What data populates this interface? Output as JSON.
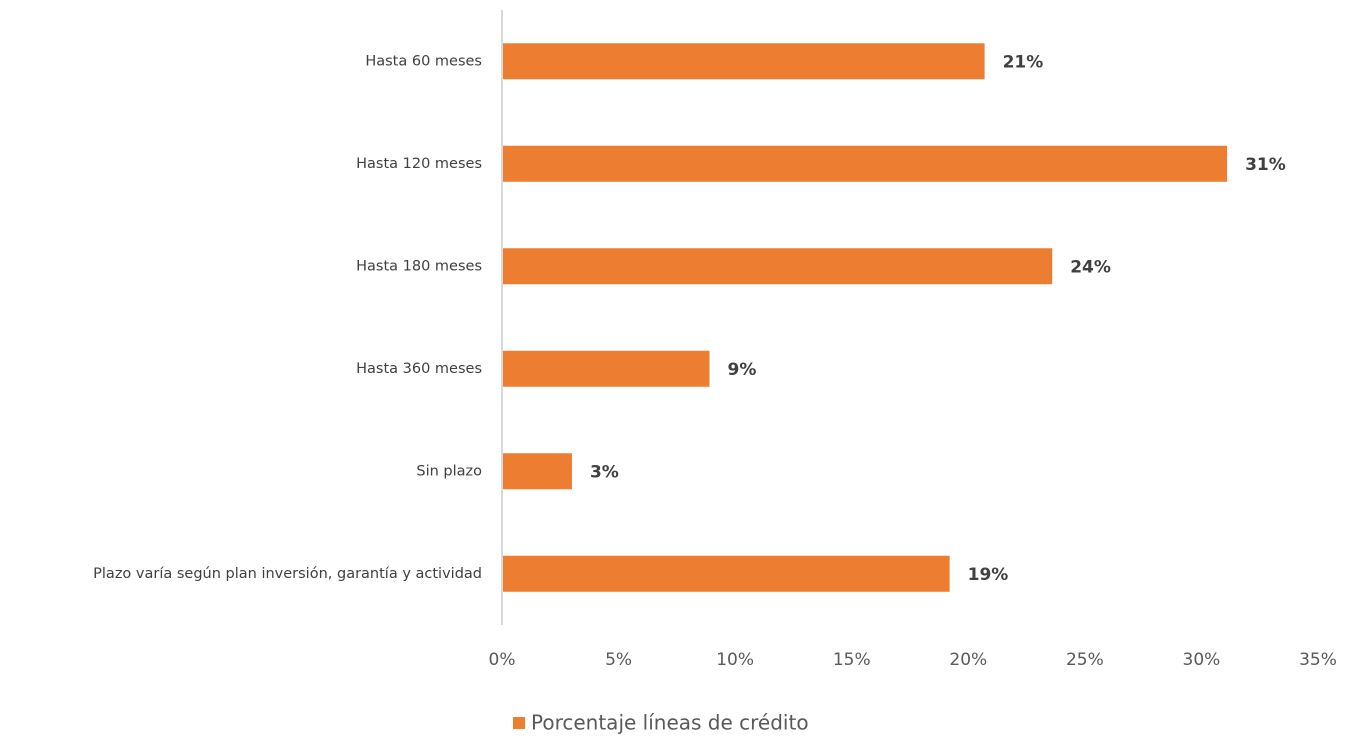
{
  "chart_data": {
    "type": "bar",
    "orientation": "horizontal",
    "categories": [
      "Hasta 60 meses",
      "Hasta 120 meses",
      "Hasta 180 meses",
      "Hasta 360 meses",
      "Sin plazo",
      "Plazo varía según plan inversión, garantía y actividad"
    ],
    "series": [
      {
        "name": "Porcentaje líneas de crédito",
        "color": "#ed7d31",
        "values": [
          20.7,
          31.1,
          23.6,
          8.9,
          3.0,
          19.2
        ],
        "value_labels": [
          "21%",
          "31%",
          "24%",
          "9%",
          "3%",
          "19%"
        ]
      }
    ],
    "xlim": [
      0,
      35
    ],
    "xticks": [
      {
        "value": 0,
        "label": "0%"
      },
      {
        "value": 5,
        "label": "5%"
      },
      {
        "value": 10,
        "label": "10%"
      },
      {
        "value": 15,
        "label": "15%"
      },
      {
        "value": 20,
        "label": "20%"
      },
      {
        "value": 25,
        "label": "25%"
      },
      {
        "value": 30,
        "label": "30%"
      },
      {
        "value": 35,
        "label": "35%"
      }
    ],
    "grid": false,
    "legend": "bottom"
  }
}
